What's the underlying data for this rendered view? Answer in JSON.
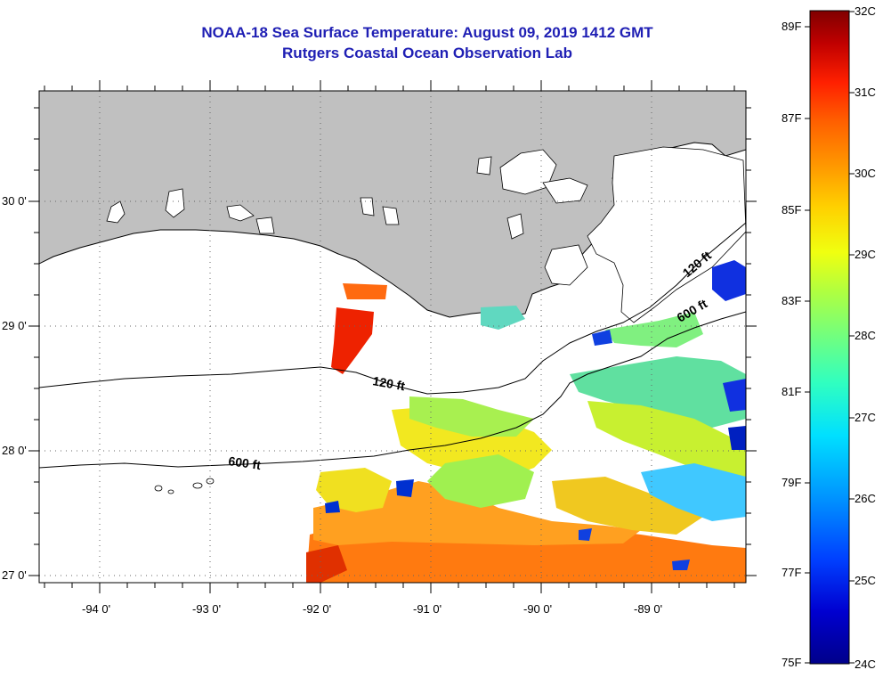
{
  "title": {
    "line1": "NOAA-18 Sea Surface Temperature:  August 09, 2019 1412 GMT",
    "line2": "Rutgers Coastal Ocean Observation Lab"
  },
  "map": {
    "longitude_labels": [
      "-94 0'",
      "-93 0'",
      "-92 0'",
      "-91 0'",
      "-90 0'",
      "-89 0'"
    ],
    "latitude_labels": [
      "30 0'",
      "29 0'",
      "28 0'",
      "27 0'"
    ],
    "contour_labels": [
      "120 ft",
      "600 ft",
      "120 ft",
      "600 ft"
    ]
  },
  "color_scale": {
    "fahrenheit_labels": [
      "89F",
      "87F",
      "85F",
      "83F",
      "81F",
      "79F",
      "77F",
      "75F"
    ],
    "celsius_labels": [
      "32C",
      "31C",
      "30C",
      "29C",
      "28C",
      "27C",
      "26C",
      "25C",
      "24C"
    ],
    "colors": [
      "#800000",
      "#c00000",
      "#ff2000",
      "#ff6000",
      "#ff9a00",
      "#ffd000",
      "#f0ff10",
      "#b0ff40",
      "#70ff80",
      "#30ffc0",
      "#00e0ff",
      "#0090ff",
      "#0040ff",
      "#0000d0",
      "#00008a"
    ]
  }
}
